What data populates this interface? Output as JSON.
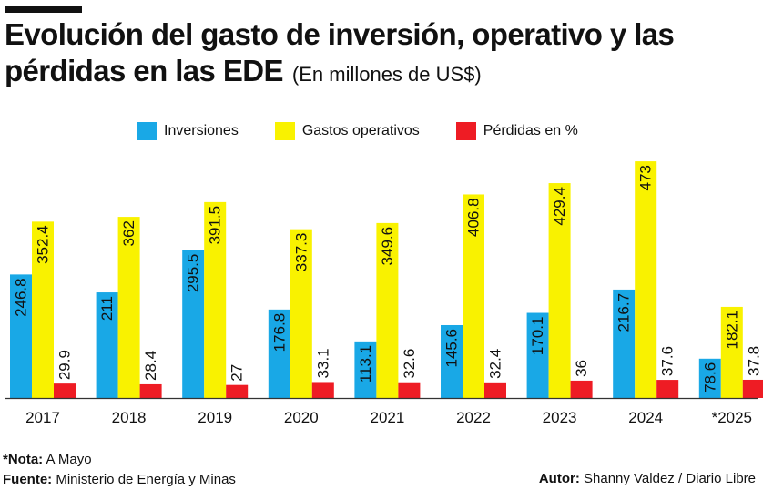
{
  "header": {
    "title": "Evolución del gasto de inversión, operativo y las pérdidas en las EDE",
    "unit": "(En millones de US$)"
  },
  "colors": {
    "inversiones": "#19a8e6",
    "gastos": "#f9f200",
    "perdidas": "#ee1c24"
  },
  "chart_data": {
    "type": "bar",
    "title": "Evolución del gasto de inversión, operativo y las pérdidas en las EDE",
    "subtitle": "(En millones de US$)",
    "xlabel": "",
    "ylabel": "",
    "categories": [
      "2017",
      "2018",
      "2019",
      "2020",
      "2021",
      "2022",
      "2023",
      "2024",
      "*2025"
    ],
    "series": [
      {
        "name": "Inversiones",
        "values": [
          246.8,
          211,
          295.5,
          176.8,
          113.1,
          145.6,
          170.1,
          216.7,
          78.6
        ],
        "labels": [
          "246.8",
          "211",
          "295.5",
          "176.8",
          "113.1",
          "145.6",
          "170.1",
          "216.7",
          "78.6"
        ]
      },
      {
        "name": "Gastos operativos",
        "values": [
          352.4,
          362,
          391.5,
          337.3,
          349.6,
          406.8,
          429.4,
          473,
          182.1
        ],
        "labels": [
          "352.4",
          "362",
          "391.5",
          "337.3",
          "349.6",
          "406.8",
          "429.4",
          "473",
          "182.1"
        ]
      },
      {
        "name": "Pérdidas en %",
        "values": [
          29.9,
          28.4,
          27,
          33.1,
          32.6,
          32.4,
          36,
          37.6,
          37.8
        ],
        "labels": [
          "29.9",
          "28.4",
          "27",
          "33.1",
          "32.6",
          "32.4",
          "36",
          "37.6",
          "37.8"
        ]
      }
    ],
    "legend_position": "top",
    "grid": false
  },
  "footer": {
    "note_label": "*Nota:",
    "note_text": "A Mayo",
    "source_label": "Fuente:",
    "source_text": "Ministerio de Energía y Minas",
    "author_label": "Autor:",
    "author_text": "Shanny Valdez / Diario Libre"
  }
}
